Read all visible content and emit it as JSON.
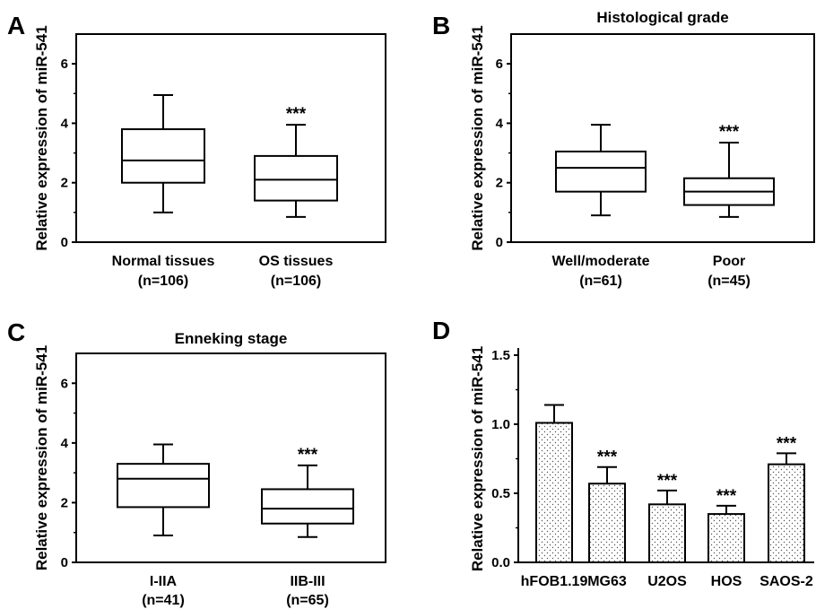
{
  "chart_data": [
    {
      "panel": "A",
      "type": "box",
      "title": "",
      "ylabel": "Relative expression of miR-541",
      "ylim": [
        0,
        7
      ],
      "yticks": [
        "0",
        "2",
        "4",
        "6"
      ],
      "categories": [
        "Normal tissues",
        "OS tissues"
      ],
      "sample_sizes": [
        "(n=106)",
        "(n=106)"
      ],
      "boxes": [
        {
          "min": 1.0,
          "q1": 2.0,
          "median": 2.75,
          "q3": 3.8,
          "max": 4.95,
          "annotation": ""
        },
        {
          "min": 0.85,
          "q1": 1.4,
          "median": 2.1,
          "q3": 2.9,
          "max": 3.95,
          "annotation": "***"
        }
      ]
    },
    {
      "panel": "B",
      "type": "box",
      "title": "Histological grade",
      "ylabel": "Relative expression of miR-541",
      "ylim": [
        0,
        7
      ],
      "yticks": [
        "0",
        "2",
        "4",
        "6"
      ],
      "categories": [
        "Well/moderate",
        "Poor"
      ],
      "sample_sizes": [
        "(n=61)",
        "(n=45)"
      ],
      "boxes": [
        {
          "min": 0.9,
          "q1": 1.7,
          "median": 2.5,
          "q3": 3.05,
          "max": 3.95,
          "annotation": ""
        },
        {
          "min": 0.85,
          "q1": 1.25,
          "median": 1.7,
          "q3": 2.15,
          "max": 3.35,
          "annotation": "***"
        }
      ]
    },
    {
      "panel": "C",
      "type": "box",
      "title": "Enneking stage",
      "ylabel": "Relative expression of miR-541",
      "ylim": [
        0,
        7
      ],
      "yticks": [
        "0",
        "2",
        "4",
        "6"
      ],
      "categories": [
        "I-IIA",
        "IIB-III"
      ],
      "sample_sizes": [
        "(n=41)",
        "(n=65)"
      ],
      "boxes": [
        {
          "min": 0.9,
          "q1": 1.85,
          "median": 2.8,
          "q3": 3.3,
          "max": 3.95,
          "annotation": ""
        },
        {
          "min": 0.85,
          "q1": 1.3,
          "median": 1.8,
          "q3": 2.45,
          "max": 3.25,
          "annotation": "***"
        }
      ]
    },
    {
      "panel": "D",
      "type": "bar",
      "title": "",
      "ylabel": "Relative expression of miR-541",
      "ylim": [
        0,
        1.5
      ],
      "yticks": [
        "0.0",
        "0.5",
        "1.0",
        "1.5"
      ],
      "categories": [
        "hFOB1.19",
        "MG63",
        "U2OS",
        "HOS",
        "SAOS-2"
      ],
      "values": [
        1.01,
        0.57,
        0.42,
        0.35,
        0.71
      ],
      "errors": [
        0.13,
        0.12,
        0.1,
        0.06,
        0.08
      ],
      "annotations": [
        "",
        "***",
        "***",
        "***",
        "***"
      ]
    }
  ]
}
